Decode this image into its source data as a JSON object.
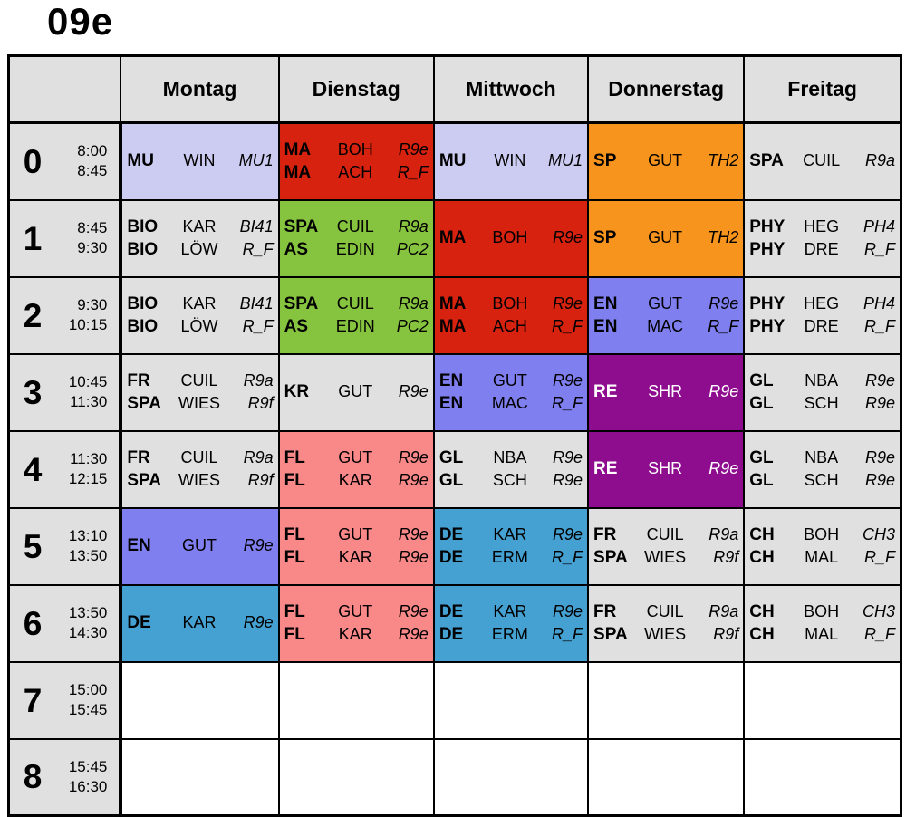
{
  "title": "09e",
  "header": {
    "days": [
      "Montag",
      "Dienstag",
      "Mittwoch",
      "Donnerstag",
      "Freitag"
    ]
  },
  "colors": {
    "gray": "#E0E0E0",
    "white": "#FFFFFF",
    "lavender": "#CCCCF2",
    "red": "#D6220F",
    "green": "#86C440",
    "orange": "#F7941D",
    "periwinkle": "#7F7FEF",
    "purple": "#8E0C8E",
    "salmon": "#F98888",
    "steelblue": "#45A1D2",
    "border": "#000000",
    "text_light": "#FFFFFF"
  },
  "rows": [
    {
      "period": "0",
      "time_start": "8:00",
      "time_end": "8:45",
      "cells": [
        {
          "bg": "lavender",
          "lessons": [
            {
              "subject": "MU",
              "teacher": "WIN",
              "room": "MU1"
            }
          ]
        },
        {
          "bg": "red",
          "lessons": [
            {
              "subject": "MA",
              "teacher": "BOH",
              "room": "R9e"
            },
            {
              "subject": "MA",
              "teacher": "ACH",
              "room": "R_F"
            }
          ]
        },
        {
          "bg": "lavender",
          "lessons": [
            {
              "subject": "MU",
              "teacher": "WIN",
              "room": "MU1"
            }
          ]
        },
        {
          "bg": "orange",
          "lessons": [
            {
              "subject": "SP",
              "teacher": "GUT",
              "room": "TH2"
            }
          ]
        },
        {
          "bg": "gray",
          "lessons": [
            {
              "subject": "SPA",
              "teacher": "CUIL",
              "room": "R9a"
            }
          ]
        }
      ]
    },
    {
      "period": "1",
      "time_start": "8:45",
      "time_end": "9:30",
      "cells": [
        {
          "bg": "gray",
          "lessons": [
            {
              "subject": "BIO",
              "teacher": "KAR",
              "room": "BI41"
            },
            {
              "subject": "BIO",
              "teacher": "LÖW",
              "room": "R_F"
            }
          ]
        },
        {
          "bg": "green",
          "lessons": [
            {
              "subject": "SPA",
              "teacher": "CUIL",
              "room": "R9a"
            },
            {
              "subject": "AS",
              "teacher": "EDIN",
              "room": "PC2"
            }
          ]
        },
        {
          "bg": "red",
          "lessons": [
            {
              "subject": "MA",
              "teacher": "BOH",
              "room": "R9e"
            }
          ]
        },
        {
          "bg": "orange",
          "lessons": [
            {
              "subject": "SP",
              "teacher": "GUT",
              "room": "TH2"
            }
          ]
        },
        {
          "bg": "gray",
          "lessons": [
            {
              "subject": "PHY",
              "teacher": "HEG",
              "room": "PH4"
            },
            {
              "subject": "PHY",
              "teacher": "DRE",
              "room": "R_F"
            }
          ]
        }
      ]
    },
    {
      "period": "2",
      "time_start": "9:30",
      "time_end": "10:15",
      "cells": [
        {
          "bg": "gray",
          "lessons": [
            {
              "subject": "BIO",
              "teacher": "KAR",
              "room": "BI41"
            },
            {
              "subject": "BIO",
              "teacher": "LÖW",
              "room": "R_F"
            }
          ]
        },
        {
          "bg": "green",
          "lessons": [
            {
              "subject": "SPA",
              "teacher": "CUIL",
              "room": "R9a"
            },
            {
              "subject": "AS",
              "teacher": "EDIN",
              "room": "PC2"
            }
          ]
        },
        {
          "bg": "red",
          "lessons": [
            {
              "subject": "MA",
              "teacher": "BOH",
              "room": "R9e"
            },
            {
              "subject": "MA",
              "teacher": "ACH",
              "room": "R_F"
            }
          ]
        },
        {
          "bg": "periwinkle",
          "lessons": [
            {
              "subject": "EN",
              "teacher": "GUT",
              "room": "R9e"
            },
            {
              "subject": "EN",
              "teacher": "MAC",
              "room": "R_F"
            }
          ]
        },
        {
          "bg": "gray",
          "lessons": [
            {
              "subject": "PHY",
              "teacher": "HEG",
              "room": "PH4"
            },
            {
              "subject": "PHY",
              "teacher": "DRE",
              "room": "R_F"
            }
          ]
        }
      ]
    },
    {
      "period": "3",
      "time_start": "10:45",
      "time_end": "11:30",
      "cells": [
        {
          "bg": "gray",
          "lessons": [
            {
              "subject": "FR",
              "teacher": "CUIL",
              "room": "R9a"
            },
            {
              "subject": "SPA",
              "teacher": "WIES",
              "room": "R9f"
            }
          ]
        },
        {
          "bg": "gray",
          "lessons": [
            {
              "subject": "KR",
              "teacher": "GUT",
              "room": "R9e"
            }
          ]
        },
        {
          "bg": "periwinkle",
          "lessons": [
            {
              "subject": "EN",
              "teacher": "GUT",
              "room": "R9e"
            },
            {
              "subject": "EN",
              "teacher": "MAC",
              "room": "R_F"
            }
          ]
        },
        {
          "bg": "purple",
          "fg": "white",
          "lessons": [
            {
              "subject": "RE",
              "teacher": "SHR",
              "room": "R9e"
            }
          ]
        },
        {
          "bg": "gray",
          "lessons": [
            {
              "subject": "GL",
              "teacher": "NBA",
              "room": "R9e"
            },
            {
              "subject": "GL",
              "teacher": "SCH",
              "room": "R9e"
            }
          ]
        }
      ]
    },
    {
      "period": "4",
      "time_start": "11:30",
      "time_end": "12:15",
      "cells": [
        {
          "bg": "gray",
          "lessons": [
            {
              "subject": "FR",
              "teacher": "CUIL",
              "room": "R9a"
            },
            {
              "subject": "SPA",
              "teacher": "WIES",
              "room": "R9f"
            }
          ]
        },
        {
          "bg": "salmon",
          "lessons": [
            {
              "subject": "FL",
              "teacher": "GUT",
              "room": "R9e"
            },
            {
              "subject": "FL",
              "teacher": "KAR",
              "room": "R9e"
            }
          ]
        },
        {
          "bg": "gray",
          "lessons": [
            {
              "subject": "GL",
              "teacher": "NBA",
              "room": "R9e"
            },
            {
              "subject": "GL",
              "teacher": "SCH",
              "room": "R9e"
            }
          ]
        },
        {
          "bg": "purple",
          "fg": "white",
          "lessons": [
            {
              "subject": "RE",
              "teacher": "SHR",
              "room": "R9e"
            }
          ]
        },
        {
          "bg": "gray",
          "lessons": [
            {
              "subject": "GL",
              "teacher": "NBA",
              "room": "R9e"
            },
            {
              "subject": "GL",
              "teacher": "SCH",
              "room": "R9e"
            }
          ]
        }
      ]
    },
    {
      "period": "5",
      "time_start": "13:10",
      "time_end": "13:50",
      "cells": [
        {
          "bg": "periwinkle",
          "lessons": [
            {
              "subject": "EN",
              "teacher": "GUT",
              "room": "R9e"
            }
          ]
        },
        {
          "bg": "salmon",
          "lessons": [
            {
              "subject": "FL",
              "teacher": "GUT",
              "room": "R9e"
            },
            {
              "subject": "FL",
              "teacher": "KAR",
              "room": "R9e"
            }
          ]
        },
        {
          "bg": "steelblue",
          "lessons": [
            {
              "subject": "DE",
              "teacher": "KAR",
              "room": "R9e"
            },
            {
              "subject": "DE",
              "teacher": "ERM",
              "room": "R_F"
            }
          ]
        },
        {
          "bg": "gray",
          "lessons": [
            {
              "subject": "FR",
              "teacher": "CUIL",
              "room": "R9a"
            },
            {
              "subject": "SPA",
              "teacher": "WIES",
              "room": "R9f"
            }
          ]
        },
        {
          "bg": "gray",
          "lessons": [
            {
              "subject": "CH",
              "teacher": "BOH",
              "room": "CH3"
            },
            {
              "subject": "CH",
              "teacher": "MAL",
              "room": "R_F"
            }
          ]
        }
      ]
    },
    {
      "period": "6",
      "time_start": "13:50",
      "time_end": "14:30",
      "cells": [
        {
          "bg": "steelblue",
          "lessons": [
            {
              "subject": "DE",
              "teacher": "KAR",
              "room": "R9e"
            }
          ]
        },
        {
          "bg": "salmon",
          "lessons": [
            {
              "subject": "FL",
              "teacher": "GUT",
              "room": "R9e"
            },
            {
              "subject": "FL",
              "teacher": "KAR",
              "room": "R9e"
            }
          ]
        },
        {
          "bg": "steelblue",
          "lessons": [
            {
              "subject": "DE",
              "teacher": "KAR",
              "room": "R9e"
            },
            {
              "subject": "DE",
              "teacher": "ERM",
              "room": "R_F"
            }
          ]
        },
        {
          "bg": "gray",
          "lessons": [
            {
              "subject": "FR",
              "teacher": "CUIL",
              "room": "R9a"
            },
            {
              "subject": "SPA",
              "teacher": "WIES",
              "room": "R9f"
            }
          ]
        },
        {
          "bg": "gray",
          "lessons": [
            {
              "subject": "CH",
              "teacher": "BOH",
              "room": "CH3"
            },
            {
              "subject": "CH",
              "teacher": "MAL",
              "room": "R_F"
            }
          ]
        }
      ]
    },
    {
      "period": "7",
      "time_start": "15:00",
      "time_end": "15:45",
      "cells": [
        {
          "bg": "white",
          "lessons": []
        },
        {
          "bg": "white",
          "lessons": []
        },
        {
          "bg": "white",
          "lessons": []
        },
        {
          "bg": "white",
          "lessons": []
        },
        {
          "bg": "white",
          "lessons": []
        }
      ]
    },
    {
      "period": "8",
      "time_start": "15:45",
      "time_end": "16:30",
      "cells": [
        {
          "bg": "white",
          "lessons": []
        },
        {
          "bg": "white",
          "lessons": []
        },
        {
          "bg": "white",
          "lessons": []
        },
        {
          "bg": "white",
          "lessons": []
        },
        {
          "bg": "white",
          "lessons": []
        }
      ]
    }
  ]
}
